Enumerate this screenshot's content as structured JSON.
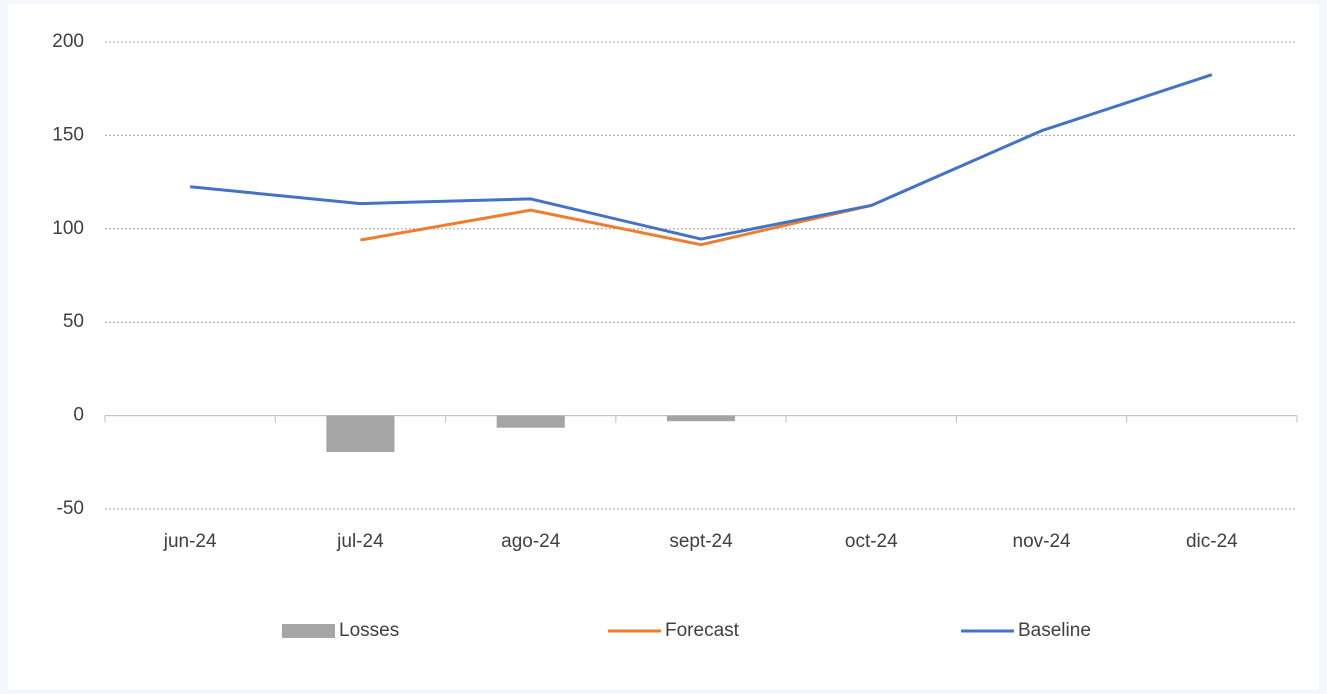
{
  "chart_data": {
    "type": "combo",
    "categories": [
      "jun-24",
      "jul-24",
      "ago-24",
      "sept-24",
      "oct-24",
      "nov-24",
      "dic-24"
    ],
    "series": [
      {
        "name": "Losses",
        "type": "bar",
        "color": "#a5a5a5",
        "values": [
          null,
          -19.5,
          -6.5,
          -3,
          null,
          null,
          null
        ]
      },
      {
        "name": "Forecast",
        "type": "line",
        "color": "#ed7d31",
        "values": [
          null,
          94,
          110,
          91.5,
          112.5,
          null,
          null
        ]
      },
      {
        "name": "Baseline",
        "type": "line",
        "color": "#4472c4",
        "values": [
          122.5,
          113.5,
          116,
          94.5,
          112.5,
          152.5,
          182.5
        ]
      }
    ],
    "ylim": [
      -50,
      200
    ],
    "yticks": [
      -50,
      0,
      50,
      100,
      150,
      200
    ],
    "grid": true,
    "legend": "bottom"
  }
}
